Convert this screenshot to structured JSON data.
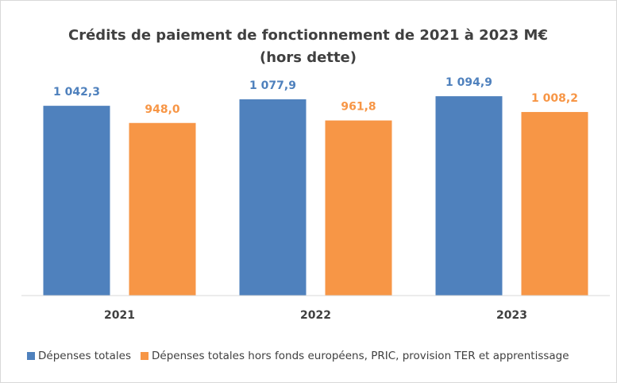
{
  "chart_data": {
    "type": "bar",
    "title": "Crédits de paiement de fonctionnement de 2021 à 2023 M€",
    "subtitle": "(hors dette)",
    "categories": [
      "2021",
      "2022",
      "2023"
    ],
    "series": [
      {
        "name": "Dépenses totales",
        "color": "#4f81bd",
        "values": [
          1042.3,
          1077.9,
          1094.9
        ],
        "value_labels": [
          "1 042,3",
          "1 077,9",
          "1 094,9"
        ]
      },
      {
        "name": "Dépenses totales hors fonds européens, PRIC, provision TER et apprentissage",
        "color": "#f79646",
        "values": [
          948.0,
          961.8,
          1008.2
        ],
        "value_labels": [
          "948,0",
          "961,8",
          "1 008,2"
        ]
      }
    ],
    "ylim": [
      0,
      1200
    ],
    "legend": "bottom"
  }
}
